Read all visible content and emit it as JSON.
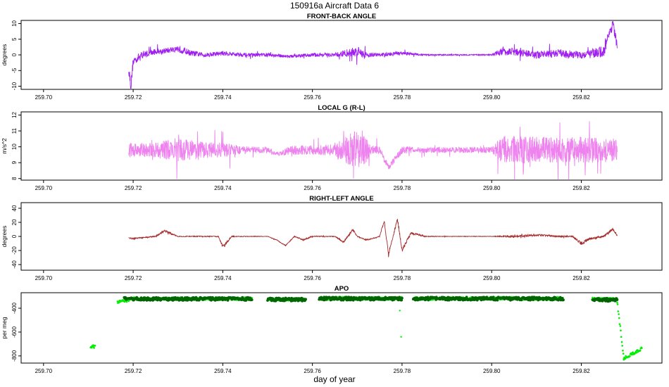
{
  "figure": {
    "title": "150916a   Aircraft Data 6",
    "xlabel": "day of year"
  },
  "chart_data": [
    {
      "type": "line",
      "title": "FRONT-BACK ANGLE",
      "ylabel": "degrees",
      "xlim": [
        259.695,
        259.838
      ],
      "ylim": [
        -11,
        11
      ],
      "xticks": [
        "259.70",
        "259.72",
        "259.74",
        "259.76",
        "259.78",
        "259.80",
        "259.82"
      ],
      "yticks": [
        "-10",
        "-5",
        "0",
        "5",
        "10"
      ],
      "color": "#a020f0",
      "series": [
        {
          "x": [
            259.719,
            259.7195,
            259.72,
            259.722,
            259.725,
            259.728,
            259.73,
            259.733,
            259.736,
            259.74,
            259.745,
            259.75,
            259.755,
            259.76,
            259.765,
            259.77,
            259.772,
            259.775,
            259.78,
            259.785,
            259.79,
            259.795,
            259.8,
            259.802,
            259.805,
            259.81,
            259.815,
            259.82,
            259.825,
            259.827,
            259.828
          ],
          "y": [
            -4,
            -10,
            -2,
            0,
            1,
            1.5,
            2,
            0.5,
            0,
            0.5,
            0,
            0,
            -0.5,
            0,
            0,
            1,
            0,
            0,
            0.5,
            0,
            0,
            0,
            0,
            1,
            1,
            0,
            0.5,
            0,
            1,
            10,
            3
          ],
          "noise": [
            3,
            3,
            2.5,
            2,
            1.5,
            1.5,
            2,
            1.5,
            1.2,
            1.2,
            1,
            1,
            0.8,
            1,
            1,
            3,
            1.5,
            1,
            1,
            0.4,
            0.3,
            0.3,
            0.3,
            2,
            2,
            2,
            2,
            2,
            3,
            3,
            2
          ]
        }
      ]
    },
    {
      "type": "line",
      "title": "LOCAL G (R-L)",
      "ylabel": "m/s^2",
      "xlim": [
        259.695,
        259.838
      ],
      "ylim": [
        7.9,
        12.2
      ],
      "xticks": [
        "259.70",
        "259.72",
        "259.74",
        "259.76",
        "259.78",
        "259.80",
        "259.82"
      ],
      "yticks": [
        "8",
        "9",
        "10",
        "11",
        "12"
      ],
      "color": "#ee82ee",
      "series": [
        {
          "x": [
            259.719,
            259.72,
            259.725,
            259.73,
            259.735,
            259.74,
            259.745,
            259.75,
            259.7525,
            259.755,
            259.76,
            259.765,
            259.77,
            259.771,
            259.773,
            259.775,
            259.777,
            259.78,
            259.785,
            259.79,
            259.795,
            259.8,
            259.802,
            259.81,
            259.815,
            259.82,
            259.825,
            259.828
          ],
          "y": [
            9.8,
            9.8,
            9.8,
            9.8,
            9.8,
            9.8,
            9.8,
            9.8,
            9.5,
            9.8,
            9.8,
            9.8,
            9.8,
            9.8,
            9.8,
            9.8,
            8.7,
            9.8,
            9.8,
            9.8,
            9.8,
            9.8,
            9.8,
            9.8,
            9.8,
            9.8,
            9.8,
            9.8
          ],
          "noise": [
            0.8,
            0.7,
            0.8,
            1.3,
            0.9,
            0.8,
            0.4,
            0.3,
            0.2,
            0.5,
            0.5,
            0.6,
            2.2,
            2.2,
            0.5,
            0.4,
            0.3,
            0.4,
            0.3,
            0.3,
            0.3,
            0.3,
            1.5,
            1.4,
            1.3,
            1.4,
            1.3,
            1.2
          ]
        }
      ]
    },
    {
      "type": "line",
      "title": "RIGHT-LEFT ANGLE",
      "ylabel": "degrees",
      "xlim": [
        259.695,
        259.838
      ],
      "ylim": [
        -48,
        48
      ],
      "xticks": [
        "259.70",
        "259.72",
        "259.74",
        "259.76",
        "259.78",
        "259.80",
        "259.82"
      ],
      "yticks": [
        "-40",
        "-20",
        "0",
        "20",
        "40"
      ],
      "color": "#a52a2a",
      "series": [
        {
          "x": [
            259.719,
            259.72,
            259.725,
            259.727,
            259.73,
            259.735,
            259.739,
            259.74,
            259.742,
            259.745,
            259.75,
            259.752,
            259.754,
            259.756,
            259.758,
            259.76,
            259.765,
            259.767,
            259.769,
            259.77,
            259.772,
            259.775,
            259.776,
            259.777,
            259.778,
            259.779,
            259.78,
            259.782,
            259.785,
            259.79,
            259.795,
            259.8,
            259.805,
            259.81,
            259.815,
            259.818,
            259.82,
            259.822,
            259.825,
            259.827,
            259.828
          ],
          "y": [
            -2,
            -3,
            0,
            8,
            0,
            0,
            0,
            -15,
            0,
            0,
            0,
            -5,
            -13,
            0,
            -5,
            0,
            0,
            -8,
            10,
            0,
            -5,
            0,
            22,
            -25,
            0,
            25,
            -20,
            5,
            0,
            0,
            0,
            0,
            0,
            2,
            0,
            0,
            -10,
            -3,
            0,
            10,
            2
          ],
          "noise": [
            1.5,
            1.5,
            1,
            3,
            1,
            1,
            1,
            4,
            1,
            0.8,
            0.5,
            1,
            1,
            1,
            1.5,
            1,
            0.8,
            2,
            3,
            1,
            1.5,
            1,
            4,
            4,
            2,
            5,
            5,
            3,
            1,
            0.5,
            0.5,
            0.5,
            2.5,
            2,
            1.5,
            1.5,
            4,
            2.5,
            2.5,
            3,
            2
          ]
        }
      ]
    },
    {
      "type": "scatter",
      "title": "APO",
      "ylabel": "per meg",
      "xlim": [
        259.695,
        259.838
      ],
      "ylim": [
        -860,
        -270
      ],
      "xticks": [
        "259.70",
        "259.72",
        "259.74",
        "259.76",
        "259.78",
        "259.80",
        "259.82"
      ],
      "yticks": [
        "-800",
        "-600",
        "-400"
      ],
      "series": [
        {
          "name": "",
          "color": "#00ee00",
          "segments": [
            {
              "x0": 259.7105,
              "x1": 259.7115,
              "y0": -720,
              "y1": -720
            },
            {
              "x0": 259.7165,
              "x1": 259.719,
              "y0": -350,
              "y1": -330
            },
            {
              "x0": 259.719,
              "x1": 259.7465,
              "y0": -320,
              "y1": -320
            },
            {
              "x0": 259.75,
              "x1": 259.7585,
              "y0": -325,
              "y1": -325
            },
            {
              "x0": 259.7615,
              "x1": 259.78,
              "y0": -318,
              "y1": -318
            },
            {
              "x0": 259.7825,
              "x1": 259.816,
              "y0": -318,
              "y1": -318
            },
            {
              "x0": 259.8225,
              "x1": 259.828,
              "y0": -325,
              "y1": -325
            },
            {
              "x0": 259.828,
              "x1": 259.8295,
              "y0": -340,
              "y1": -820
            },
            {
              "x0": 259.8295,
              "x1": 259.8335,
              "y0": -820,
              "y1": -740
            }
          ]
        },
        {
          "name": "",
          "color": "#006400",
          "segments": [
            {
              "x0": 259.718,
              "x1": 259.7465,
              "y0": -322,
              "y1": -322
            },
            {
              "x0": 259.75,
              "x1": 259.7585,
              "y0": -327,
              "y1": -327
            },
            {
              "x0": 259.7615,
              "x1": 259.78,
              "y0": -320,
              "y1": -320
            },
            {
              "x0": 259.7825,
              "x1": 259.816,
              "y0": -320,
              "y1": -320
            },
            {
              "x0": 259.8225,
              "x1": 259.828,
              "y0": -330,
              "y1": -330
            }
          ]
        }
      ]
    }
  ]
}
